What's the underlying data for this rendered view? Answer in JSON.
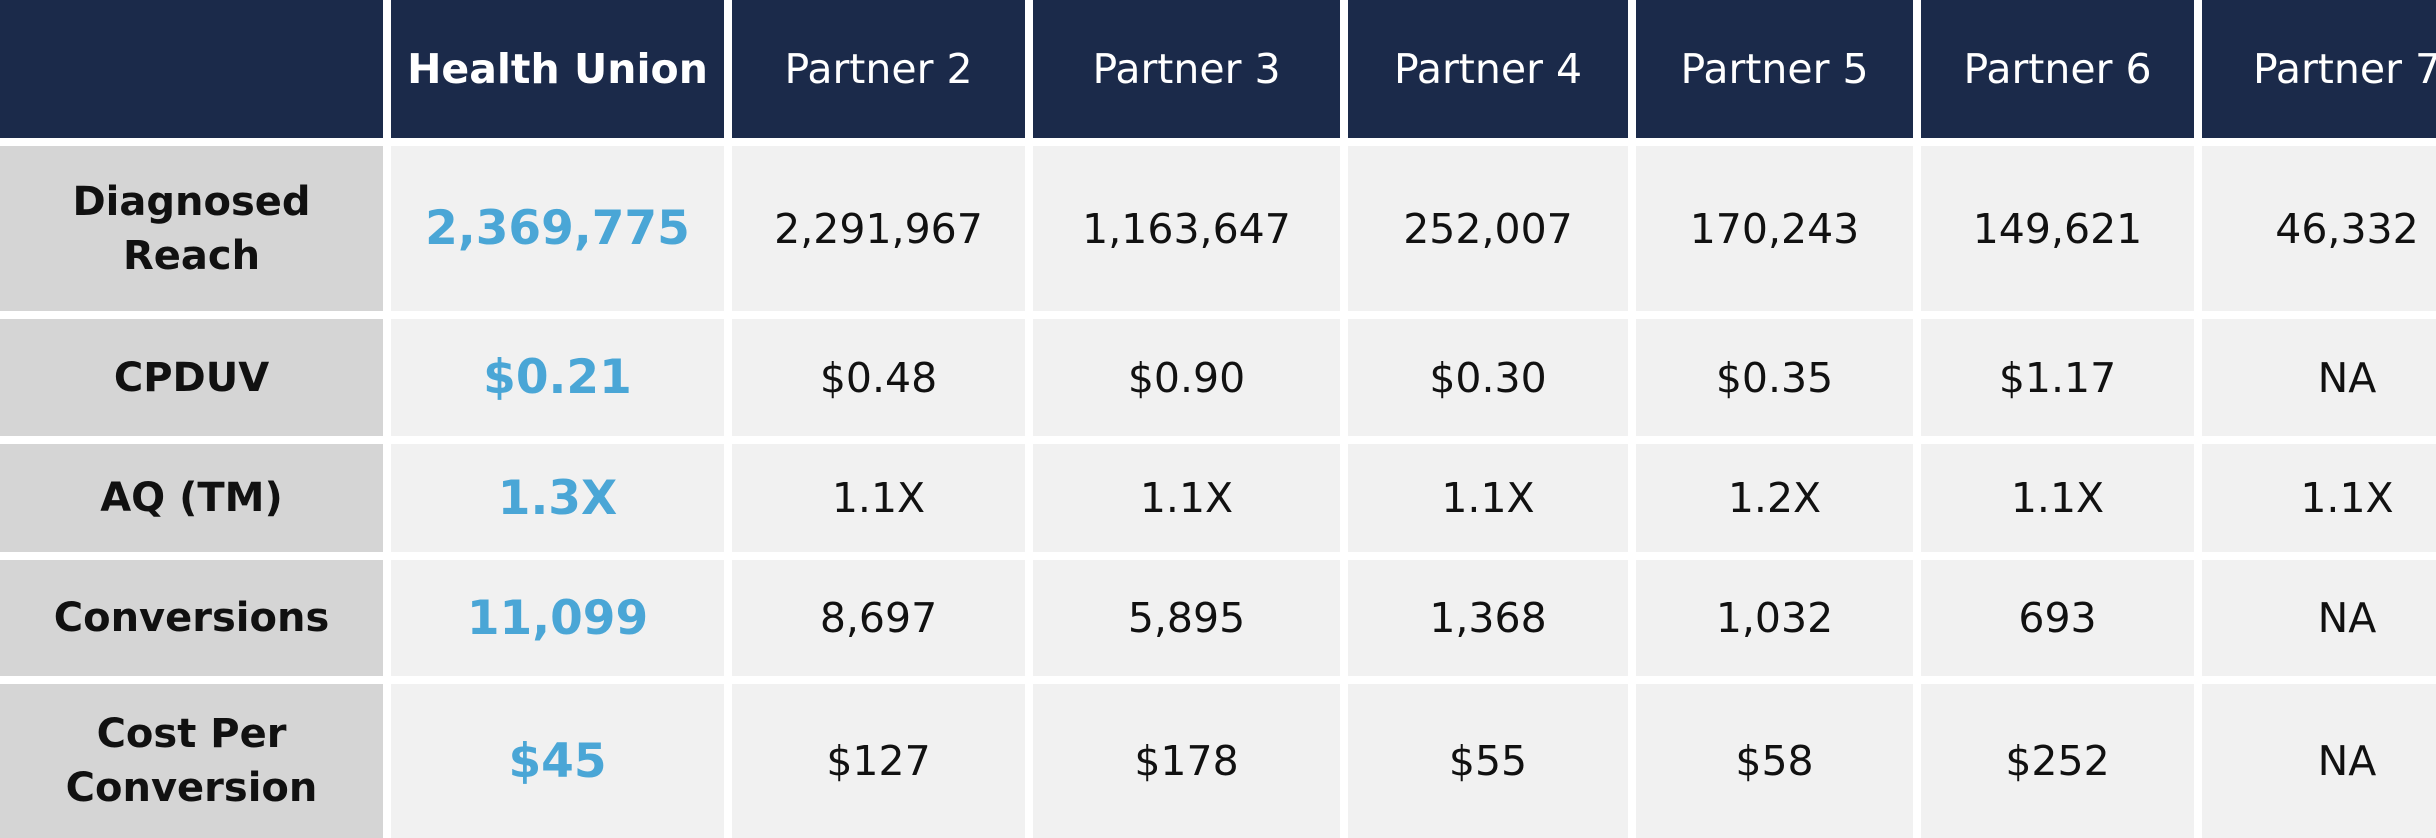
{
  "table": {
    "headers": [
      "",
      "Health Union",
      "Partner 2",
      "Partner 3",
      "Partner 4",
      "Partner 5",
      "Partner 6",
      "Partner 7"
    ],
    "rows": [
      {
        "label_lines": [
          "Diagnosed",
          "Reach"
        ],
        "highlight": "2,369,775",
        "values": [
          "2,291,967",
          "1,163,647",
          "252,007",
          "170,243",
          "149,621",
          "46,332"
        ]
      },
      {
        "label_lines": [
          "CPDUV"
        ],
        "highlight": "$0.21",
        "values": [
          "$0.48",
          "$0.90",
          "$0.30",
          "$0.35",
          "$1.17",
          "NA"
        ]
      },
      {
        "label_lines": [
          "AQ (TM)"
        ],
        "highlight": "1.3X",
        "values": [
          "1.1X",
          "1.1X",
          "1.1X",
          "1.2X",
          "1.1X",
          "1.1X"
        ]
      },
      {
        "label_lines": [
          "Conversions"
        ],
        "highlight": "11,099",
        "values": [
          "8,697",
          "5,895",
          "1,368",
          "1,032",
          "693",
          "NA"
        ]
      },
      {
        "label_lines": [
          "Cost Per",
          "Conversion"
        ],
        "highlight": "$45",
        "values": [
          "$127",
          "$178",
          "$55",
          "$58",
          "$252",
          "NA"
        ]
      }
    ]
  },
  "colors": {
    "header_bg": "#1b2a4a",
    "highlight_text": "#4aa6d6",
    "label_bg": "#d5d5d5",
    "cell_bg": "#f1f1f1"
  }
}
